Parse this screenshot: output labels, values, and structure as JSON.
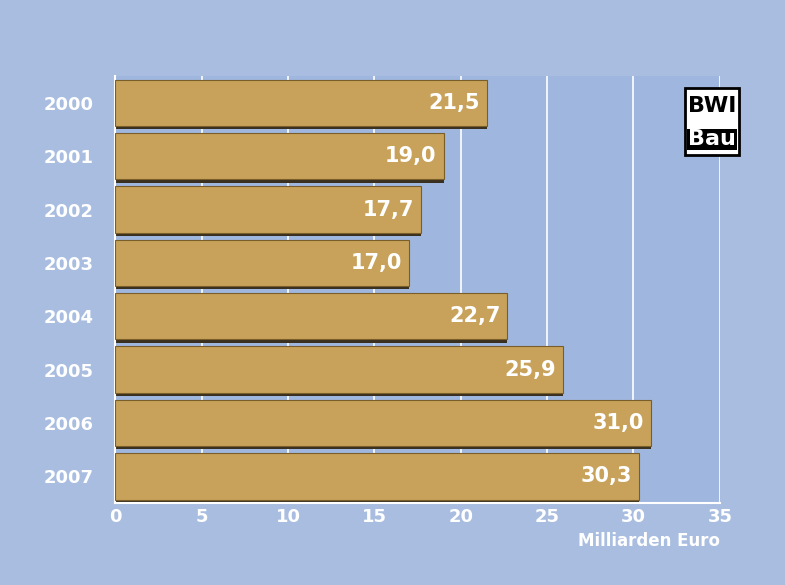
{
  "chart_data": {
    "type": "bar",
    "orientation": "horizontal",
    "categories": [
      "2000",
      "2001",
      "2002",
      "2003",
      "2004",
      "2005",
      "2006",
      "2007"
    ],
    "values": [
      21.5,
      19.0,
      17.7,
      17.0,
      22.7,
      25.9,
      31.0,
      30.3
    ],
    "value_labels": [
      "21,5",
      "19,0",
      "17,7",
      "17,0",
      "22,7",
      "25,9",
      "31,0",
      "30,3"
    ],
    "data_labels": true,
    "color": "#c8a25a",
    "xlabel": "Milliarden Euro",
    "xlim": [
      0,
      35
    ],
    "xticks": [
      0,
      5,
      10,
      15,
      20,
      25,
      30,
      35
    ],
    "grid": true,
    "annotations": [
      "BWI",
      "Bau"
    ]
  }
}
